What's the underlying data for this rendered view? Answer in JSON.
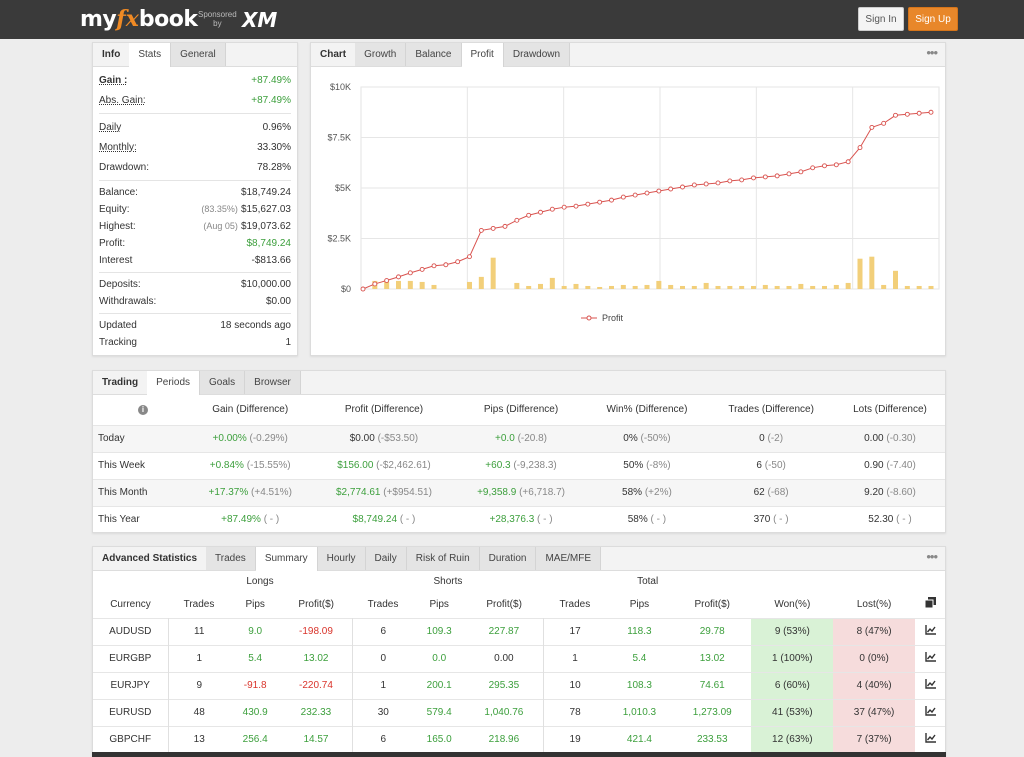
{
  "header": {
    "logo_my": "my",
    "logo_fx": "fx",
    "logo_book": "book",
    "sponsored_line1": "Sponsored",
    "sponsored_line2": "by",
    "sponsor_brand": "XM",
    "sign_in": "Sign In",
    "sign_up": "Sign Up"
  },
  "info_panel": {
    "tabs": [
      "Info",
      "Stats",
      "General"
    ],
    "active_tab": "Stats",
    "gain_label": "Gain :",
    "gain_value": "+87.49%",
    "abs_gain_label": "Abs. Gain:",
    "abs_gain_value": "+87.49%",
    "daily_label": "Daily",
    "daily_value": "0.96%",
    "monthly_label": "Monthly:",
    "monthly_value": "33.30%",
    "drawdown_label": "Drawdown:",
    "drawdown_value": "78.28%",
    "balance_label": "Balance:",
    "balance_value": "$18,749.24",
    "equity_label": "Equity:",
    "equity_sub": "(83.35%)",
    "equity_value": "$15,627.03",
    "highest_label": "Highest:",
    "highest_sub": "(Aug 05)",
    "highest_value": "$19,073.62",
    "profit_label": "Profit:",
    "profit_value": "$8,749.24",
    "interest_label": "Interest",
    "interest_value": "-$813.66",
    "deposits_label": "Deposits:",
    "deposits_value": "$10,000.00",
    "withdrawals_label": "Withdrawals:",
    "withdrawals_value": "$0.00",
    "updated_label": "Updated",
    "updated_value": "18 seconds ago",
    "tracking_label": "Tracking",
    "tracking_value": "1"
  },
  "chart_panel": {
    "tabs": [
      "Chart",
      "Growth",
      "Balance",
      "Profit",
      "Drawdown"
    ],
    "active_tab": "Profit",
    "menu_icon": "more-dots-icon"
  },
  "chart_data": {
    "type": "line",
    "title": "",
    "xlabel": "",
    "ylabel": "",
    "ylim": [
      0,
      10000
    ],
    "yticks": [
      "$0",
      "$2.5K",
      "$5K",
      "$7.5K",
      "$10K"
    ],
    "grid": true,
    "legend": "bottom",
    "series": [
      {
        "name": "Profit",
        "type": "line",
        "color": "#d9534f",
        "values": [
          0,
          250,
          420,
          600,
          800,
          970,
          1150,
          1200,
          1350,
          1600,
          2900,
          3000,
          3100,
          3400,
          3650,
          3800,
          3950,
          4050,
          4100,
          4200,
          4300,
          4400,
          4550,
          4650,
          4750,
          4850,
          4950,
          5050,
          5150,
          5200,
          5250,
          5350,
          5400,
          5500,
          5550,
          5600,
          5700,
          5800,
          6000,
          6100,
          6150,
          6300,
          7000,
          8000,
          8200,
          8600,
          8650,
          8700,
          8750
        ]
      },
      {
        "name": "",
        "type": "bar",
        "color": "#f2cf7a",
        "values": [
          0,
          400,
          350,
          400,
          400,
          350,
          200,
          0,
          0,
          350,
          600,
          1550,
          0,
          300,
          150,
          250,
          550,
          150,
          250,
          150,
          100,
          150,
          200,
          150,
          200,
          400,
          200,
          150,
          150,
          300,
          150,
          150,
          150,
          150,
          200,
          150,
          150,
          250,
          150,
          150,
          200,
          300,
          1500,
          1600,
          200,
          900,
          150,
          150,
          150
        ]
      }
    ]
  },
  "periods_panel": {
    "tabs": [
      "Trading",
      "Periods",
      "Goals",
      "Browser"
    ],
    "active_tab": "Periods",
    "columns": [
      "Gain (Difference)",
      "Profit (Difference)",
      "Pips (Difference)",
      "Win% (Difference)",
      "Trades (Difference)",
      "Lots (Difference)"
    ],
    "rows": [
      {
        "label": "Today",
        "gain": "+0.00%",
        "gain_d": "(-0.29%)",
        "profit": "$0.00",
        "profit_d": "(-$53.50)",
        "pips": "+0.0",
        "pips_d": "(-20.8)",
        "win": "0%",
        "win_d": "(-50%)",
        "trades": "0",
        "trades_d": "(-2)",
        "lots": "0.00",
        "lots_d": "(-0.30)"
      },
      {
        "label": "This Week",
        "gain": "+0.84%",
        "gain_d": "(-15.55%)",
        "profit": "$156.00",
        "profit_d": "(-$2,462.61)",
        "pips": "+60.3",
        "pips_d": "(-9,238.3)",
        "win": "50%",
        "win_d": "(-8%)",
        "trades": "6",
        "trades_d": "(-50)",
        "lots": "0.90",
        "lots_d": "(-7.40)"
      },
      {
        "label": "This Month",
        "gain": "+17.37%",
        "gain_d": "(+4.51%)",
        "profit": "$2,774.61",
        "profit_d": "(+$954.51)",
        "pips": "+9,358.9",
        "pips_d": "(+6,718.7)",
        "win": "58%",
        "win_d": "(+2%)",
        "trades": "62",
        "trades_d": "(-68)",
        "lots": "9.20",
        "lots_d": "(-8.60)"
      },
      {
        "label": "This Year",
        "gain": "+87.49%",
        "gain_d": "( - )",
        "profit": "$8,749.24",
        "profit_d": "( - )",
        "pips": "+28,376.3",
        "pips_d": "( - )",
        "win": "58%",
        "win_d": "( - )",
        "trades": "370",
        "trades_d": "( - )",
        "lots": "52.30",
        "lots_d": "( - )"
      }
    ]
  },
  "advanced_panel": {
    "tabs": [
      "Advanced Statistics",
      "Trades",
      "Summary",
      "Hourly",
      "Daily",
      "Risk of Ruin",
      "Duration",
      "MAE/MFE"
    ],
    "active_tab": "Summary",
    "groups": [
      "Longs",
      "Shorts",
      "Total"
    ],
    "columns": [
      "Currency",
      "Trades",
      "Pips",
      "Profit($)",
      "Trades",
      "Pips",
      "Profit($)",
      "Trades",
      "Pips",
      "Profit($)",
      "Won(%)",
      "Lost(%)"
    ],
    "rows": [
      {
        "cur": "AUDUSD",
        "lt": "11",
        "lp": "9.0",
        "lpr": "-198.09",
        "st": "6",
        "sp": "109.3",
        "spr": "227.87",
        "tt": "17",
        "tp": "118.3",
        "tpr": "29.78",
        "won": "9 (53%)",
        "lost": "8 (47%)"
      },
      {
        "cur": "EURGBP",
        "lt": "1",
        "lp": "5.4",
        "lpr": "13.02",
        "st": "0",
        "sp": "0.0",
        "spr": "0.00",
        "tt": "1",
        "tp": "5.4",
        "tpr": "13.02",
        "won": "1 (100%)",
        "lost": "0 (0%)"
      },
      {
        "cur": "EURJPY",
        "lt": "9",
        "lp": "-91.8",
        "lpr": "-220.74",
        "st": "1",
        "sp": "200.1",
        "spr": "295.35",
        "tt": "10",
        "tp": "108.3",
        "tpr": "74.61",
        "won": "6 (60%)",
        "lost": "4 (40%)"
      },
      {
        "cur": "EURUSD",
        "lt": "48",
        "lp": "430.9",
        "lpr": "232.33",
        "st": "30",
        "sp": "579.4",
        "spr": "1,040.76",
        "tt": "78",
        "tp": "1,010.3",
        "tpr": "1,273.09",
        "won": "41 (53%)",
        "lost": "37 (47%)"
      },
      {
        "cur": "GBPCHF",
        "lt": "13",
        "lp": "256.4",
        "lpr": "14.57",
        "st": "6",
        "sp": "165.0",
        "spr": "218.96",
        "tt": "19",
        "tp": "421.4",
        "tpr": "233.53",
        "won": "12 (63%)",
        "lost": "7 (37%)"
      }
    ]
  },
  "colors": {
    "green": "#3c9f3c",
    "red": "#d9342b",
    "accent": "#e8872a"
  }
}
